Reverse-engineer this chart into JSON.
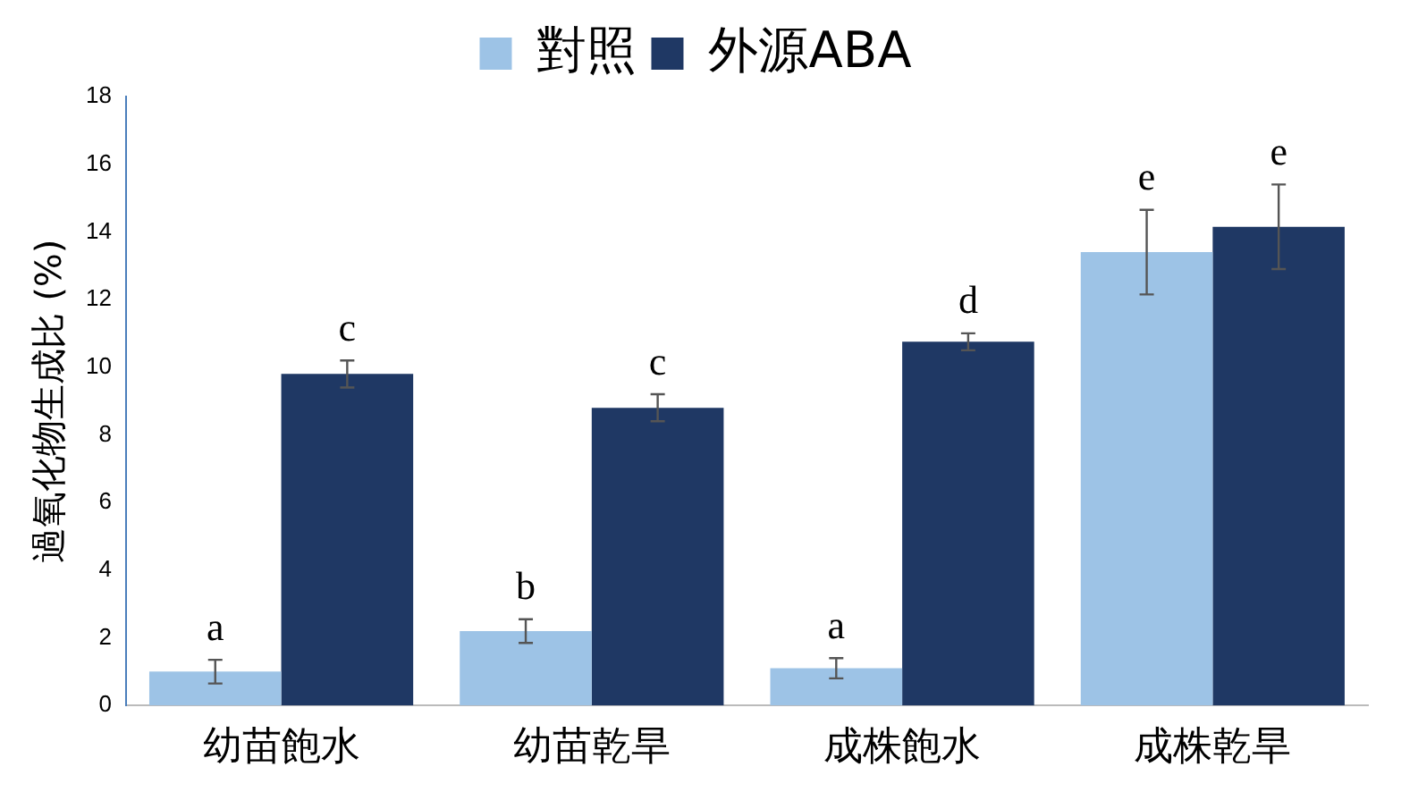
{
  "chart_data": {
    "type": "bar",
    "ylabel": "過氧化物生成比 (%)",
    "categories": [
      "幼苗飽水",
      "幼苗乾旱",
      "成株飽水",
      "成株乾旱"
    ],
    "series": [
      {
        "name": "對照",
        "color": "#9dc3e6",
        "values": [
          1.0,
          2.2,
          1.1,
          13.4
        ],
        "errors": [
          0.35,
          0.35,
          0.3,
          1.25
        ]
      },
      {
        "name": "外源ABA",
        "color": "#1f3864",
        "values": [
          9.8,
          8.8,
          10.75,
          14.15
        ],
        "errors": [
          0.4,
          0.4,
          0.25,
          1.25
        ]
      }
    ],
    "annotations": [
      "a",
      "c",
      "b",
      "c",
      "a",
      "d",
      "e",
      "e"
    ],
    "ylim": [
      0,
      18
    ],
    "yticks": [
      0,
      2,
      4,
      6,
      8,
      10,
      12,
      14,
      16,
      18
    ],
    "grid": false,
    "legend": "top"
  }
}
